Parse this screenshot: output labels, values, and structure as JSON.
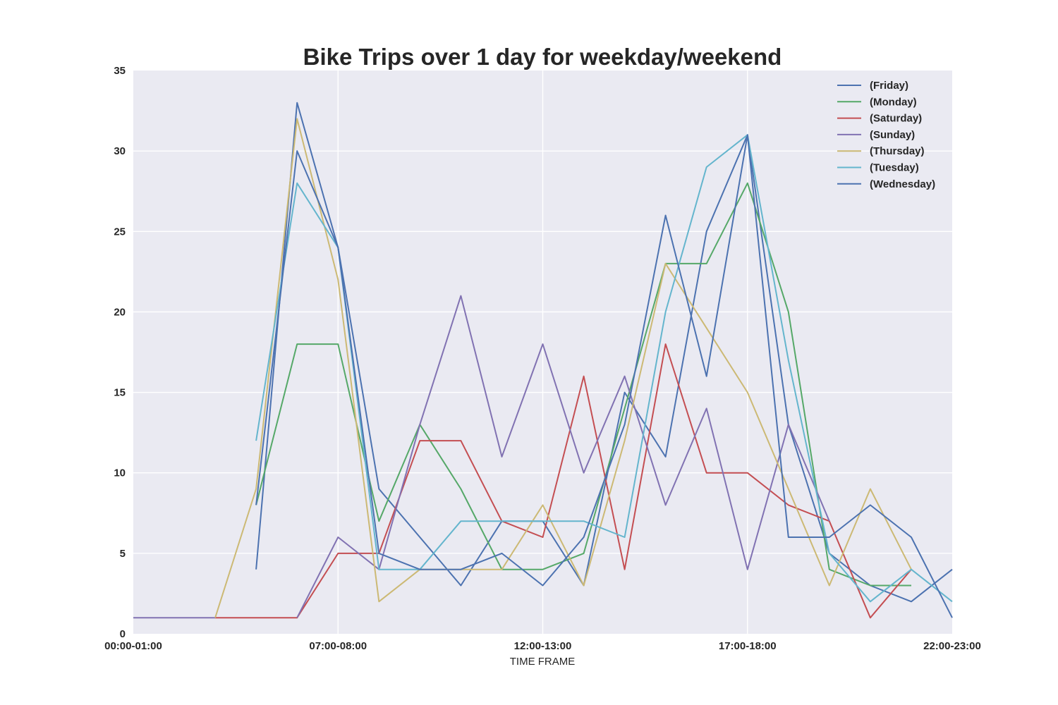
{
  "chart_data": {
    "type": "line",
    "title": "Bike Trips over 1 day for weekday/weekend",
    "xlabel": "TIME FRAME",
    "ylabel": "",
    "ylim": [
      0,
      35
    ],
    "xlim": [
      0,
      20
    ],
    "grid": true,
    "legend_position": "top-right",
    "x_ticks": [
      {
        "x": 0,
        "label": "00:00-01:00"
      },
      {
        "x": 5,
        "label": "07:00-08:00"
      },
      {
        "x": 10,
        "label": "12:00-13:00"
      },
      {
        "x": 15,
        "label": "17:00-18:00"
      },
      {
        "x": 20,
        "label": "22:00-23:00"
      }
    ],
    "y_ticks": [
      0,
      5,
      10,
      15,
      20,
      25,
      30,
      35
    ],
    "x": [
      0,
      1,
      2,
      3,
      4,
      5,
      6,
      7,
      8,
      9,
      10,
      11,
      12,
      13,
      14,
      15,
      16,
      17,
      18,
      19,
      20
    ],
    "series": [
      {
        "name": "(Friday)",
        "color": "#4c72b0",
        "values": [
          null,
          null,
          null,
          4,
          33,
          24,
          9,
          6,
          3,
          7,
          7,
          3,
          15,
          11,
          25,
          31,
          13,
          5,
          3,
          2,
          4
        ]
      },
      {
        "name": "(Monday)",
        "color": "#55a868",
        "values": [
          null,
          null,
          null,
          8,
          18,
          18,
          7,
          13,
          9,
          4,
          4,
          5,
          14,
          23,
          23,
          28,
          20,
          4,
          3,
          3,
          null
        ]
      },
      {
        "name": "(Saturday)",
        "color": "#c44e52",
        "values": [
          null,
          null,
          1,
          1,
          1,
          5,
          5,
          12,
          12,
          7,
          6,
          16,
          4,
          18,
          10,
          10,
          8,
          7,
          1,
          4,
          null
        ]
      },
      {
        "name": "(Sunday)",
        "color": "#8172b2",
        "values": [
          1,
          1,
          1,
          null,
          1,
          6,
          4,
          13,
          21,
          11,
          18,
          10,
          16,
          8,
          14,
          4,
          13,
          7,
          null,
          null,
          null
        ]
      },
      {
        "name": "(Thursday)",
        "color": "#ccb974",
        "values": [
          null,
          null,
          1,
          9,
          32,
          22,
          2,
          4,
          4,
          4,
          8,
          3,
          12,
          23,
          19,
          15,
          9,
          3,
          9,
          4,
          null
        ]
      },
      {
        "name": "(Tuesday)",
        "color": "#64b5cd",
        "values": [
          null,
          null,
          null,
          12,
          28,
          24,
          4,
          4,
          7,
          7,
          7,
          7,
          6,
          20,
          29,
          31,
          17,
          5,
          2,
          4,
          2
        ]
      },
      {
        "name": "(Wednesday)",
        "color": "#4c72b0",
        "values": [
          null,
          null,
          null,
          8,
          30,
          24,
          5,
          4,
          4,
          5,
          3,
          6,
          13,
          26,
          16,
          31,
          6,
          6,
          8,
          6,
          1
        ]
      }
    ]
  }
}
